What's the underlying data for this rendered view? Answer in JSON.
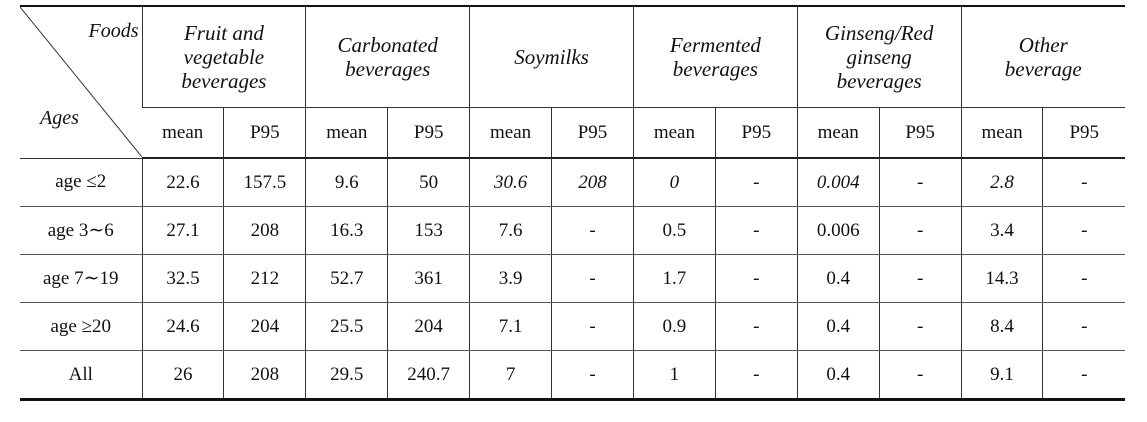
{
  "table": {
    "corner": {
      "top": "Foods",
      "bottom": "Ages"
    },
    "groups": [
      "Fruit and\nvegetable\nbeverages",
      "Carbonated\nbeverages",
      "Soymilks",
      "Fermented\nbeverages",
      "Ginseng/Red\nginseng\nbeverages",
      "Other\nbeverage"
    ],
    "subheaders": [
      "mean",
      "P95",
      "mean",
      "P95",
      "mean",
      "P95",
      "mean",
      "P95",
      "mean",
      "P95",
      "mean",
      "P95"
    ],
    "rows": [
      {
        "label": "age ≤2",
        "cells": [
          "22.6",
          "157.5",
          "9.6",
          "50",
          "30.6",
          "208",
          "0",
          "-",
          "0.004",
          "-",
          "2.8",
          "-"
        ]
      },
      {
        "label": "age 3∼6",
        "cells": [
          "27.1",
          "208",
          "16.3",
          "153",
          "7.6",
          "-",
          "0.5",
          "-",
          "0.006",
          "-",
          "3.4",
          "-"
        ]
      },
      {
        "label": "age 7∼19",
        "cells": [
          "32.5",
          "212",
          "52.7",
          "361",
          "3.9",
          "-",
          "1.7",
          "-",
          "0.4",
          "-",
          "14.3",
          "-"
        ]
      },
      {
        "label": "age ≥20",
        "cells": [
          "24.6",
          "204",
          "25.5",
          "204",
          "7.1",
          "-",
          "0.9",
          "-",
          "0.4",
          "-",
          "8.4",
          "-"
        ]
      },
      {
        "label": "All",
        "cells": [
          "26",
          "208",
          "29.5",
          "240.7",
          "7",
          "-",
          "1",
          "-",
          "0.4",
          "-",
          "9.1",
          "-"
        ]
      }
    ]
  }
}
